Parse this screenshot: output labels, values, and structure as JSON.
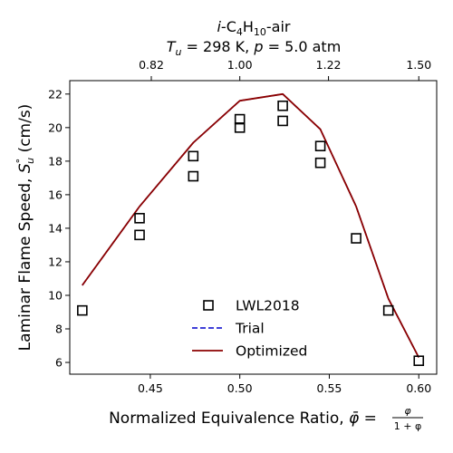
{
  "chart_data": {
    "type": "line",
    "title_line1": "i-C4H10-air",
    "title_line2": "Tu = 298 K, p = 5.0 atm",
    "xlabel": "Normalized Equivalence Ratio, φ̄ = φ/(1+φ)",
    "ylabel": "Laminar Flame Speed, S°u (cm/s)",
    "xlim": [
      0.405,
      0.61
    ],
    "ylim": [
      5.3,
      22.8
    ],
    "x_ticks": [
      0.45,
      0.5,
      0.55,
      0.6
    ],
    "x_tick_labels": [
      "0.45",
      "0.50",
      "0.55",
      "0.60"
    ],
    "y_ticks": [
      6,
      8,
      10,
      12,
      14,
      16,
      18,
      20,
      22
    ],
    "y_tick_labels": [
      "6",
      "8",
      "10",
      "12",
      "14",
      "16",
      "18",
      "20",
      "22"
    ],
    "top_axis_label": "",
    "top_ticks_phi": [
      0.82,
      1.0,
      1.22,
      1.5
    ],
    "top_tick_labels": [
      "0.82",
      "1.00",
      "1.22",
      "1.50"
    ],
    "grid": false,
    "legend_position": "bottom-center",
    "series": [
      {
        "name": "LWL2018",
        "kind": "scatter",
        "marker": "open-square",
        "color": "#000000",
        "x": [
          0.412,
          0.444,
          0.444,
          0.474,
          0.474,
          0.5,
          0.5,
          0.524,
          0.524,
          0.545,
          0.545,
          0.565,
          0.583,
          0.6
        ],
        "y": [
          9.1,
          14.6,
          13.6,
          18.3,
          17.1,
          20.5,
          20.0,
          21.3,
          20.4,
          18.9,
          17.9,
          13.4,
          9.1,
          6.1
        ]
      },
      {
        "name": "Trial",
        "kind": "line",
        "style": "dashed",
        "color": "#0000cc",
        "x": [
          0.412,
          0.444,
          0.474,
          0.5,
          0.524,
          0.545,
          0.565,
          0.583,
          0.6
        ],
        "y": [
          10.6,
          15.3,
          19.1,
          21.6,
          22.0,
          19.9,
          15.3,
          9.8,
          6.3
        ]
      },
      {
        "name": "Optimized",
        "kind": "line",
        "style": "solid",
        "color": "#8b0000",
        "x": [
          0.412,
          0.444,
          0.474,
          0.5,
          0.524,
          0.545,
          0.565,
          0.583,
          0.6
        ],
        "y": [
          10.6,
          15.3,
          19.1,
          21.6,
          22.0,
          19.9,
          15.3,
          9.8,
          6.3
        ]
      }
    ]
  }
}
